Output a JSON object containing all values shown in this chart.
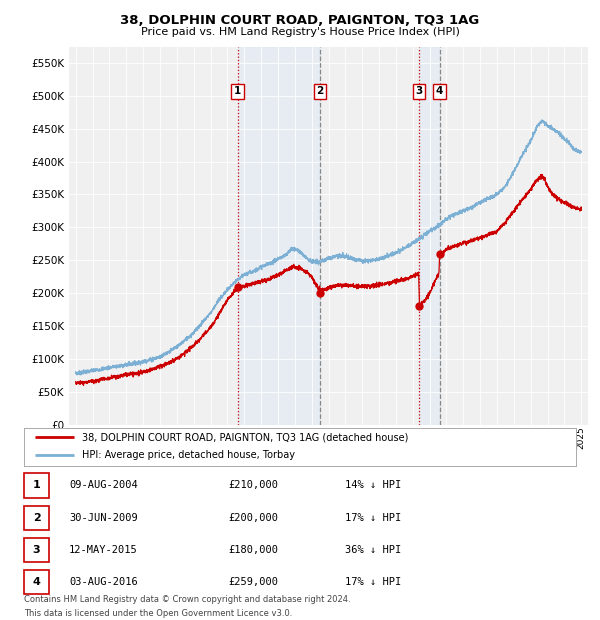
{
  "title": "38, DOLPHIN COURT ROAD, PAIGNTON, TQ3 1AG",
  "subtitle": "Price paid vs. HM Land Registry's House Price Index (HPI)",
  "sale_dates_decimal": [
    2004.609,
    2009.496,
    2015.36,
    2016.588
  ],
  "sale_prices": [
    210000,
    200000,
    180000,
    259000
  ],
  "sale_labels": [
    "1",
    "2",
    "3",
    "4"
  ],
  "sale_date_strings": [
    "09-AUG-2004",
    "30-JUN-2009",
    "12-MAY-2015",
    "03-AUG-2016"
  ],
  "sale_price_strings": [
    "£210,000",
    "£200,000",
    "£180,000",
    "£259,000"
  ],
  "sale_pct_strings": [
    "14% ↓ HPI",
    "17% ↓ HPI",
    "36% ↓ HPI",
    "17% ↓ HPI"
  ],
  "hpi_line_color": "#7bafd4",
  "price_line_color": "#cc0000",
  "marker_color": "#cc0000",
  "highlight_color": "#ddeeff",
  "ylim": [
    0,
    575000
  ],
  "yticks": [
    0,
    50000,
    100000,
    150000,
    200000,
    250000,
    300000,
    350000,
    400000,
    450000,
    500000,
    550000
  ],
  "footnote1": "Contains HM Land Registry data © Crown copyright and database right 2024.",
  "footnote2": "This data is licensed under the Open Government Licence v3.0.",
  "background_color": "#ffffff",
  "plot_bg_color": "#f0f0f0",
  "grid_color": "#ffffff",
  "hpi_key_points": [
    [
      1995.0,
      78000
    ],
    [
      1996.0,
      82000
    ],
    [
      1997.0,
      87000
    ],
    [
      1998.0,
      91000
    ],
    [
      1999.0,
      96000
    ],
    [
      2000.0,
      103000
    ],
    [
      2001.0,
      118000
    ],
    [
      2002.0,
      140000
    ],
    [
      2003.0,
      170000
    ],
    [
      2003.5,
      190000
    ],
    [
      2004.0,
      205000
    ],
    [
      2004.5,
      218000
    ],
    [
      2005.0,
      228000
    ],
    [
      2005.5,
      233000
    ],
    [
      2006.0,
      240000
    ],
    [
      2006.5,
      245000
    ],
    [
      2007.0,
      252000
    ],
    [
      2007.5,
      258000
    ],
    [
      2007.8,
      268000
    ],
    [
      2008.2,
      265000
    ],
    [
      2008.5,
      258000
    ],
    [
      2009.0,
      248000
    ],
    [
      2009.5,
      247000
    ],
    [
      2010.0,
      253000
    ],
    [
      2010.5,
      257000
    ],
    [
      2011.0,
      256000
    ],
    [
      2011.5,
      252000
    ],
    [
      2012.0,
      249000
    ],
    [
      2012.5,
      250000
    ],
    [
      2013.0,
      252000
    ],
    [
      2013.5,
      256000
    ],
    [
      2014.0,
      262000
    ],
    [
      2014.5,
      268000
    ],
    [
      2015.0,
      276000
    ],
    [
      2015.5,
      285000
    ],
    [
      2016.0,
      294000
    ],
    [
      2016.5,
      302000
    ],
    [
      2017.0,
      313000
    ],
    [
      2017.5,
      320000
    ],
    [
      2018.0,
      325000
    ],
    [
      2018.5,
      330000
    ],
    [
      2019.0,
      338000
    ],
    [
      2019.5,
      344000
    ],
    [
      2020.0,
      350000
    ],
    [
      2020.5,
      362000
    ],
    [
      2021.0,
      385000
    ],
    [
      2021.5,
      410000
    ],
    [
      2022.0,
      432000
    ],
    [
      2022.4,
      455000
    ],
    [
      2022.7,
      462000
    ],
    [
      2023.0,
      455000
    ],
    [
      2023.3,
      450000
    ],
    [
      2023.7,
      443000
    ],
    [
      2024.0,
      435000
    ],
    [
      2024.3,
      428000
    ],
    [
      2024.6,
      418000
    ],
    [
      2024.9,
      415000
    ]
  ],
  "price_key_points": [
    [
      1995.0,
      63000
    ],
    [
      1996.0,
      66000
    ],
    [
      1997.0,
      71000
    ],
    [
      1998.0,
      76000
    ],
    [
      1999.0,
      80000
    ],
    [
      2000.0,
      88000
    ],
    [
      2001.0,
      100000
    ],
    [
      2002.0,
      120000
    ],
    [
      2003.0,
      148000
    ],
    [
      2003.5,
      168000
    ],
    [
      2004.0,
      190000
    ],
    [
      2004.5,
      205000
    ],
    [
      2005.0,
      210000
    ],
    [
      2005.5,
      215000
    ],
    [
      2006.0,
      218000
    ],
    [
      2006.5,
      222000
    ],
    [
      2007.0,
      228000
    ],
    [
      2007.5,
      235000
    ],
    [
      2007.9,
      240000
    ],
    [
      2008.3,
      238000
    ],
    [
      2008.7,
      232000
    ],
    [
      2009.0,
      225000
    ],
    [
      2009.4,
      207000
    ],
    [
      2009.7,
      205000
    ],
    [
      2010.0,
      208000
    ],
    [
      2010.5,
      212000
    ],
    [
      2011.0,
      213000
    ],
    [
      2011.5,
      211000
    ],
    [
      2012.0,
      210000
    ],
    [
      2012.5,
      211000
    ],
    [
      2013.0,
      213000
    ],
    [
      2013.5,
      215000
    ],
    [
      2014.0,
      218000
    ],
    [
      2014.5,
      221000
    ],
    [
      2015.0,
      225000
    ],
    [
      2015.35,
      230000
    ],
    [
      2015.4,
      182000
    ],
    [
      2015.6,
      185000
    ],
    [
      2015.8,
      192000
    ],
    [
      2016.0,
      200000
    ],
    [
      2016.3,
      218000
    ],
    [
      2016.55,
      230000
    ],
    [
      2016.6,
      258000
    ],
    [
      2016.8,
      262000
    ],
    [
      2017.0,
      267000
    ],
    [
      2017.5,
      272000
    ],
    [
      2018.0,
      276000
    ],
    [
      2018.5,
      280000
    ],
    [
      2019.0,
      284000
    ],
    [
      2019.5,
      289000
    ],
    [
      2020.0,
      294000
    ],
    [
      2020.5,
      308000
    ],
    [
      2021.0,
      325000
    ],
    [
      2021.5,
      342000
    ],
    [
      2022.0,
      358000
    ],
    [
      2022.3,
      370000
    ],
    [
      2022.6,
      378000
    ],
    [
      2022.8,
      374000
    ],
    [
      2023.0,
      362000
    ],
    [
      2023.3,
      350000
    ],
    [
      2023.6,
      344000
    ],
    [
      2024.0,
      338000
    ],
    [
      2024.3,
      333000
    ],
    [
      2024.6,
      330000
    ],
    [
      2024.9,
      328000
    ]
  ]
}
